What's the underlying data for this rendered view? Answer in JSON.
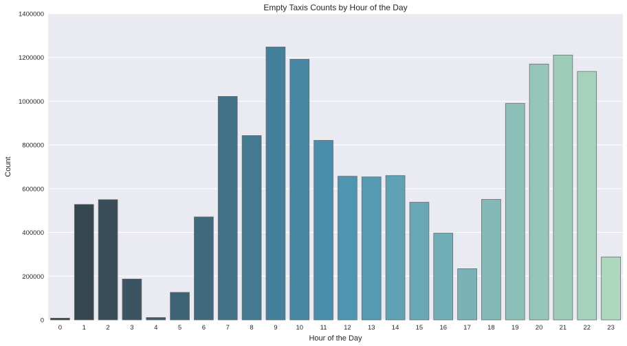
{
  "chart_data": {
    "type": "bar",
    "title": "Empty Taxis Counts by Hour of the Day",
    "xlabel": "Hour of the Day",
    "ylabel": "Count",
    "categories": [
      "0",
      "1",
      "2",
      "3",
      "4",
      "5",
      "6",
      "7",
      "8",
      "9",
      "10",
      "11",
      "12",
      "13",
      "14",
      "15",
      "16",
      "17",
      "18",
      "19",
      "20",
      "21",
      "22",
      "23"
    ],
    "values": [
      8000,
      528000,
      550000,
      187000,
      11000,
      126000,
      471000,
      1022000,
      843000,
      1248000,
      1192000,
      821000,
      657000,
      654000,
      660000,
      538000,
      397000,
      234000,
      551000,
      990000,
      1170000,
      1211000,
      1136000,
      288000
    ],
    "ylim": [
      0,
      1400000
    ],
    "yticks": [
      "0",
      "200000",
      "400000",
      "600000",
      "800000",
      "1000000",
      "1200000",
      "1400000"
    ],
    "grid": true,
    "legend": "none",
    "colors": {
      "background": "#eaeaf2",
      "grid": "#ffffff",
      "bar_edge": "#6b6b6b",
      "palette_start": "#343f45",
      "palette_mid": "#4a92b2",
      "palette_end": "#aed8bd"
    }
  }
}
